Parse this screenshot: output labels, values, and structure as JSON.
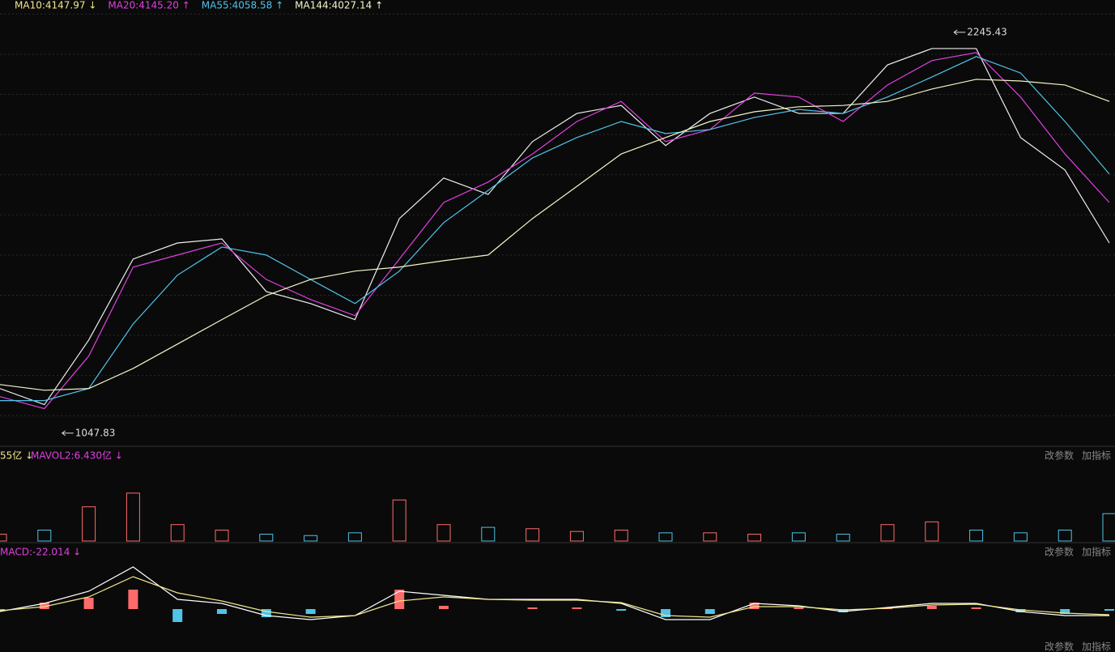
{
  "header": {
    "indicators": [
      {
        "text": "MA10:4147.97 ↓",
        "color": "#f0e68c"
      },
      {
        "text": "MA20:4145.20 ↑",
        "color": "#e040e0"
      },
      {
        "text": "MA55:4058.58 ↑",
        "color": "#4fc3e8"
      },
      {
        "text": "MA144:4027.14 ↑",
        "color": "#f5f5c8"
      }
    ]
  },
  "buttons": [
    "改参数",
    "加指标"
  ],
  "chart_data": [
    {
      "type": "line",
      "ylim": [
        1011,
        2342
      ],
      "grid": true,
      "yticks": [
        1100,
        1220,
        1340,
        1460,
        1580,
        1700,
        1820,
        1940,
        2060,
        2180,
        2300
      ],
      "annotations": [
        {
          "value": 1047.83,
          "index": 1.4
        },
        {
          "value": 2245.43,
          "index": 21.5
        }
      ],
      "series": [
        {
          "name": "K",
          "color": "#eeeeee",
          "values": [
            1181,
            1133,
            1326,
            1568,
            1616,
            1628,
            1471,
            1435,
            1387,
            1689,
            1810,
            1761,
            1919,
            2003,
            2027,
            1907,
            2003,
            2052,
            2003,
            2003,
            2148,
            2197,
            2197,
            1931,
            1834,
            1616
          ]
        },
        {
          "name": "MA20",
          "color": "#e040e0",
          "values": [
            1157,
            1121,
            1278,
            1544,
            1580,
            1616,
            1507,
            1447,
            1399,
            1568,
            1737,
            1798,
            1882,
            1979,
            2039,
            1919,
            1955,
            2064,
            2052,
            1979,
            2088,
            2161,
            2185,
            2052,
            1882,
            1737
          ]
        },
        {
          "name": "MA55",
          "color": "#4fc3e8",
          "values": [
            1145,
            1145,
            1181,
            1374,
            1520,
            1604,
            1580,
            1507,
            1435,
            1532,
            1677,
            1773,
            1870,
            1931,
            1979,
            1943,
            1955,
            1991,
            2015,
            2003,
            2052,
            2112,
            2173,
            2124,
            1979,
            1822
          ]
        },
        {
          "name": "MA144",
          "color": "#f5f5c8",
          "values": [
            1193,
            1176,
            1181,
            1241,
            1314,
            1387,
            1459,
            1507,
            1532,
            1544,
            1563,
            1580,
            1689,
            1785,
            1882,
            1931,
            1979,
            2008,
            2023,
            2027,
            2039,
            2076,
            2105,
            2100,
            2088,
            2039
          ]
        }
      ]
    },
    {
      "type": "bar",
      "title": "55亿 ↓",
      "subtitle": "MAVOL2:6.430亿 ↓",
      "ylim": [
        0,
        55
      ],
      "values": [
        5,
        8,
        25,
        35,
        12,
        8,
        5,
        4,
        6,
        30,
        12,
        10,
        9,
        7,
        8,
        6,
        6,
        5,
        6,
        5,
        12,
        14,
        8,
        6,
        8,
        20
      ],
      "colors": [
        "#ff6b6b",
        "#4fc3e8",
        "#ff6b6b",
        "#ff6b6b",
        "#ff6b6b",
        "#ff6b6b",
        "#4fc3e8",
        "#4fc3e8",
        "#4fc3e8",
        "#ff6b6b",
        "#ff6b6b",
        "#4fc3e8",
        "#ff6b6b",
        "#ff6b6b",
        "#ff6b6b",
        "#4fc3e8",
        "#ff6b6b",
        "#ff6b6b",
        "#4fc3e8",
        "#4fc3e8",
        "#ff6b6b",
        "#ff6b6b",
        "#4fc3e8",
        "#4fc3e8",
        "#4fc3e8",
        "#4fc3e8"
      ]
    },
    {
      "type": "macd",
      "title": "MACD:-22.014 ↓",
      "ylim": [
        -48,
        62
      ],
      "values": [
        -2,
        8,
        14,
        24,
        -16,
        -6,
        -10,
        -6,
        0,
        24,
        4,
        0,
        2,
        2,
        -2,
        -10,
        -6,
        8,
        2,
        -4,
        2,
        4,
        2,
        -4,
        -6,
        -2
      ],
      "series": [
        {
          "name": "DIF",
          "color": "#ffffff",
          "values": [
            -3,
            7,
            22,
            52,
            12,
            7,
            -8,
            -13,
            -8,
            22,
            17,
            12,
            12,
            12,
            7,
            -13,
            -13,
            7,
            4,
            -3,
            2,
            7,
            7,
            -3,
            -8,
            -8
          ]
        },
        {
          "name": "DEA",
          "color": "#f0e68c",
          "values": [
            -2,
            3,
            15,
            40,
            20,
            10,
            -3,
            -10,
            -8,
            10,
            15,
            12,
            11,
            11,
            8,
            -8,
            -10,
            3,
            3,
            -1,
            1,
            5,
            6,
            -1,
            -5,
            -7
          ]
        }
      ]
    }
  ]
}
